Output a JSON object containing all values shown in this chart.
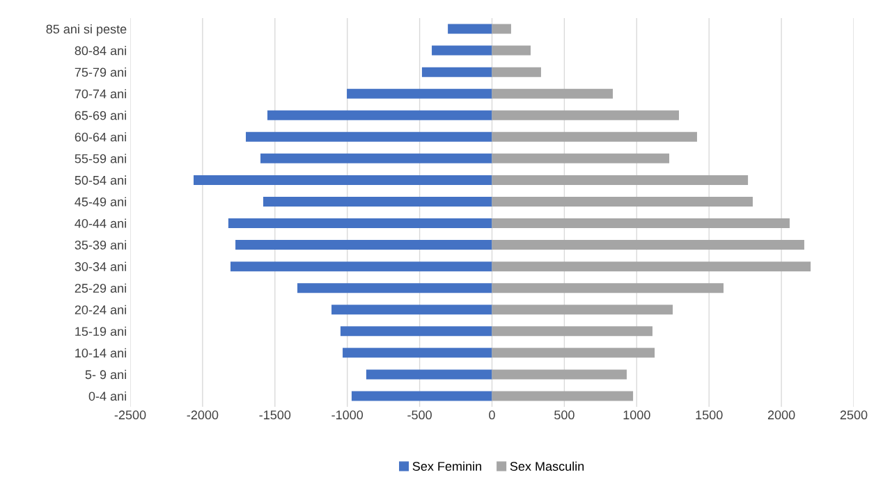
{
  "chart_data": {
    "type": "bar",
    "orientation": "horizontal",
    "categories": [
      "85 ani si peste",
      "80-84 ani",
      "75-79 ani",
      "70-74 ani",
      "65-69 ani",
      "60-64 ani",
      "55-59 ani",
      "50-54 ani",
      "45-49 ani",
      "40-44 ani",
      "35-39 ani",
      "30-34 ani",
      "25-29 ani",
      "20-24 ani",
      "15-19 ani",
      "10-14 ani",
      "5- 9 ani",
      "0-4 ani"
    ],
    "series": [
      {
        "name": "Sex Feminin",
        "color": "#4472c4",
        "values": [
          -305,
          -416,
          -484,
          -1003,
          -1552,
          -1701,
          -1600,
          -2062,
          -1581,
          -1822,
          -1773,
          -1807,
          -1345,
          -1109,
          -1047,
          -1032,
          -869,
          -970
        ]
      },
      {
        "name": "Sex Masculin",
        "color": "#a5a5a5",
        "values": [
          132,
          267,
          339,
          835,
          1292,
          1417,
          1225,
          1769,
          1802,
          2057,
          2158,
          2202,
          1600,
          1249,
          1109,
          1124,
          931,
          975
        ]
      }
    ],
    "xlim": [
      -2500,
      2500
    ],
    "xticks": [
      -2500,
      -2000,
      -1500,
      -1000,
      -500,
      0,
      500,
      1000,
      1500,
      2000,
      2500
    ],
    "grid": "x",
    "legend": "bottom",
    "stacked": true
  }
}
